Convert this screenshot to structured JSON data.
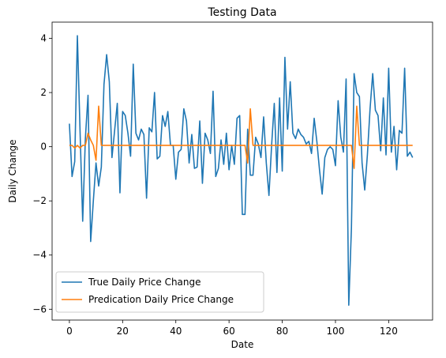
{
  "chart_data": {
    "type": "line",
    "title": "Testing Data",
    "xlabel": "Date",
    "ylabel": "Daily Change",
    "xlim": [
      -6.5,
      136.5
    ],
    "ylim": [
      -6.4,
      4.6
    ],
    "xticks": [
      0,
      20,
      40,
      60,
      80,
      100,
      120
    ],
    "xtick_labels": [
      "0",
      "20",
      "40",
      "60",
      "80",
      "100",
      "120"
    ],
    "yticks": [
      4,
      2,
      0,
      -2,
      -4,
      -6
    ],
    "ytick_labels": [
      "4",
      "2",
      "0",
      "−2",
      "−4",
      "−6"
    ],
    "grid": false,
    "legend_position": "lower-left",
    "series": [
      {
        "name": "True Daily Price Change",
        "color": "#1f77b4",
        "values": [
          0.85,
          -1.1,
          -0.55,
          4.1,
          0.6,
          -2.75,
          0.3,
          1.9,
          -3.5,
          -2.0,
          -0.6,
          -1.45,
          -0.75,
          2.3,
          3.4,
          2.4,
          -0.4,
          0.6,
          1.6,
          -1.7,
          1.3,
          1.15,
          0.5,
          -0.35,
          3.05,
          0.5,
          0.25,
          0.65,
          0.45,
          -1.9,
          0.7,
          0.55,
          2.0,
          -0.45,
          -0.35,
          1.15,
          0.75,
          1.3,
          0.05,
          0.05,
          -1.2,
          -0.2,
          -0.1,
          1.4,
          0.95,
          -0.6,
          0.45,
          -0.8,
          -0.75,
          0.95,
          -1.35,
          0.5,
          0.25,
          -0.25,
          2.05,
          -1.1,
          -0.8,
          0.25,
          -0.65,
          0.5,
          -0.85,
          0.05,
          -0.65,
          1.05,
          1.15,
          -2.5,
          -2.5,
          0.65,
          -1.05,
          -1.05,
          0.35,
          0.1,
          -0.4,
          1.1,
          -0.6,
          -1.8,
          0.05,
          1.6,
          -0.95,
          1.8,
          -0.9,
          3.3,
          0.65,
          2.4,
          0.5,
          0.3,
          0.65,
          0.45,
          0.35,
          0.1,
          0.2,
          -0.25,
          1.05,
          0.2,
          -0.85,
          -1.75,
          -0.4,
          -0.1,
          0.0,
          -0.1,
          -0.7,
          1.7,
          0.35,
          -0.2,
          2.5,
          -5.85,
          -3.0,
          2.7,
          2.0,
          1.85,
          -0.6,
          -1.6,
          -0.3,
          1.4,
          2.7,
          1.35,
          1.15,
          -0.15,
          1.8,
          -0.3,
          2.9,
          -0.2,
          0.75,
          -0.85,
          0.6,
          0.5,
          2.9,
          -0.35,
          -0.2,
          -0.4
        ]
      },
      {
        "name": "Predication Daily Price Change",
        "color": "#ff7f0e",
        "values": [
          0.05,
          0.05,
          -0.05,
          0.05,
          -0.05,
          0.05,
          0.05,
          0.5,
          0.25,
          0.05,
          -0.5,
          1.5,
          0.05,
          0.05,
          0.05,
          0.05,
          0.05,
          0.05,
          0.05,
          0.05,
          0.05,
          0.05,
          0.05,
          0.05,
          0.05,
          0.05,
          0.05,
          0.05,
          0.05,
          0.05,
          0.05,
          0.05,
          0.05,
          0.05,
          0.05,
          0.05,
          0.05,
          0.05,
          0.05,
          0.05,
          0.05,
          0.05,
          0.05,
          0.05,
          0.05,
          0.05,
          0.05,
          0.05,
          0.05,
          0.05,
          0.05,
          0.05,
          0.05,
          0.05,
          0.05,
          0.05,
          0.05,
          0.05,
          0.05,
          0.05,
          0.05,
          0.05,
          0.05,
          0.05,
          0.05,
          0.05,
          0.05,
          -0.6,
          1.4,
          0.05,
          0.05,
          0.05,
          0.05,
          0.05,
          0.05,
          0.05,
          0.05,
          0.05,
          0.05,
          0.05,
          0.05,
          0.05,
          0.05,
          0.05,
          0.05,
          0.05,
          0.05,
          0.05,
          0.05,
          0.05,
          0.05,
          0.05,
          0.05,
          0.05,
          0.05,
          0.05,
          0.05,
          0.05,
          0.05,
          0.05,
          0.05,
          0.05,
          0.05,
          0.05,
          0.05,
          0.05,
          0.05,
          -0.8,
          1.5,
          0.05,
          0.05,
          0.05,
          0.05,
          0.05,
          0.05,
          0.05,
          0.05,
          0.05,
          0.05,
          0.05,
          0.05,
          0.05,
          0.05,
          0.05,
          0.05,
          0.05,
          0.05,
          0.05,
          0.05,
          0.05
        ]
      }
    ]
  }
}
